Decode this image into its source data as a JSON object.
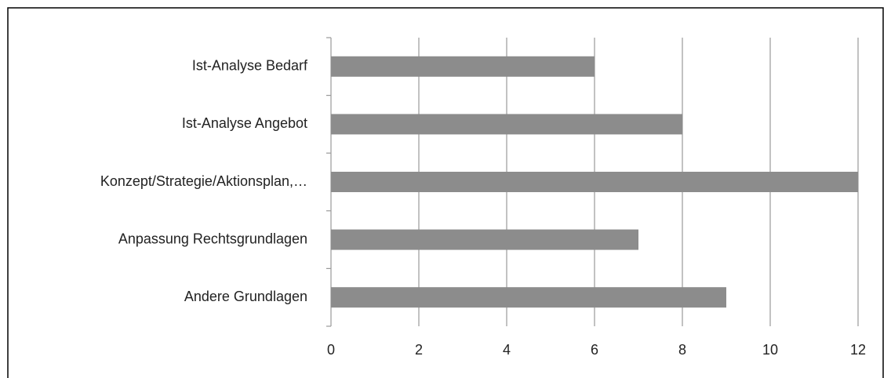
{
  "chart_data": {
    "type": "hbar",
    "categories": [
      "Ist-Analyse Bedarf",
      "Ist-Analyse Angebot",
      "Konzept/Strategie/Aktionsplan,…",
      "Anpassung Rechtsgrundlagen",
      "Andere Grundlagen"
    ],
    "values": [
      6,
      8,
      12,
      7,
      9
    ],
    "color": "#8c8c8c",
    "xlim": [
      0,
      12
    ],
    "xticks": [
      0,
      2,
      4,
      6,
      8,
      10,
      12
    ],
    "grid": true
  }
}
